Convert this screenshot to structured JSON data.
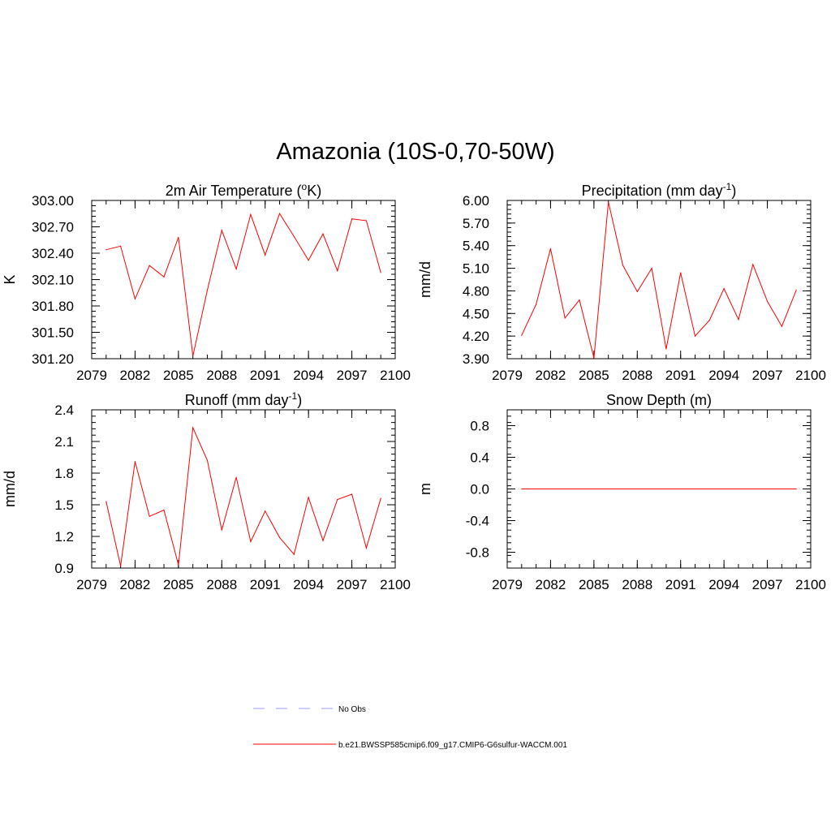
{
  "page": {
    "title": "Amazonia (10S-0,70-50W)"
  },
  "legend": {
    "entries": [
      {
        "label": "No Obs",
        "color": "#9999ff",
        "style": "dashed"
      },
      {
        "label": "b.e21.BWSSP585cmip6.f09_g17.CMIP6-G6sulfur-WACCM.001",
        "color": "#ff0000",
        "style": "solid"
      }
    ]
  },
  "chart_data": [
    {
      "type": "line",
      "title": "2m Air Temperature (",
      "title_sup": "o",
      "title_after": "K)",
      "ylabel": "K",
      "xlim": [
        2079,
        2100
      ],
      "ylim": [
        301.2,
        303.0
      ],
      "xticks": [
        "2079",
        "2082",
        "2085",
        "2088",
        "2091",
        "2094",
        "2097",
        "2100"
      ],
      "yticks": [
        "301.20",
        "301.50",
        "301.80",
        "302.10",
        "302.40",
        "302.70",
        "303.00"
      ],
      "series": [
        {
          "color": "#ff0000",
          "x": [
            2080,
            2081,
            2082,
            2083,
            2084,
            2085,
            2086,
            2087,
            2088,
            2089,
            2090,
            2091,
            2092,
            2093,
            2094,
            2095,
            2096,
            2097,
            2098,
            2099
          ],
          "values": [
            302.44,
            302.48,
            301.88,
            302.26,
            302.13,
            302.58,
            301.23,
            301.98,
            302.66,
            302.22,
            302.84,
            302.38,
            302.85,
            302.59,
            302.32,
            302.62,
            302.2,
            302.79,
            302.77,
            302.18
          ]
        }
      ]
    },
    {
      "type": "line",
      "title": "Precipitation (mm day",
      "title_sup": "-1",
      "title_after": ")",
      "ylabel": "mm/d",
      "xlim": [
        2079,
        2100
      ],
      "ylim": [
        3.9,
        6.0
      ],
      "xticks": [
        "2079",
        "2082",
        "2085",
        "2088",
        "2091",
        "2094",
        "2097",
        "2100"
      ],
      "yticks": [
        "3.90",
        "4.20",
        "4.50",
        "4.80",
        "5.10",
        "5.40",
        "5.70",
        "6.00"
      ],
      "series": [
        {
          "color": "#ff0000",
          "x": [
            2080,
            2081,
            2082,
            2083,
            2084,
            2085,
            2086,
            2087,
            2088,
            2089,
            2090,
            2091,
            2092,
            2093,
            2094,
            2095,
            2096,
            2097,
            2098,
            2099
          ],
          "values": [
            4.21,
            4.62,
            5.36,
            4.44,
            4.68,
            3.91,
            5.98,
            5.14,
            4.79,
            5.1,
            4.03,
            5.04,
            4.2,
            4.41,
            4.83,
            4.42,
            5.15,
            4.66,
            4.33,
            4.81
          ]
        }
      ]
    },
    {
      "type": "line",
      "title": "Runoff (mm day",
      "title_sup": "-1",
      "title_after": ")",
      "ylabel": "mm/d",
      "xlim": [
        2079,
        2100
      ],
      "ylim": [
        0.9,
        2.4
      ],
      "xticks": [
        "2079",
        "2082",
        "2085",
        "2088",
        "2091",
        "2094",
        "2097",
        "2100"
      ],
      "yticks": [
        "0.9",
        "1.2",
        "1.5",
        "1.8",
        "2.1",
        "2.4"
      ],
      "series": [
        {
          "color": "#ff0000",
          "x": [
            2080,
            2081,
            2082,
            2083,
            2084,
            2085,
            2086,
            2087,
            2088,
            2089,
            2090,
            2091,
            2092,
            2093,
            2094,
            2095,
            2096,
            2097,
            2098,
            2099
          ],
          "values": [
            1.53,
            0.92,
            1.91,
            1.39,
            1.45,
            0.93,
            2.23,
            1.92,
            1.26,
            1.76,
            1.15,
            1.44,
            1.19,
            1.03,
            1.57,
            1.16,
            1.55,
            1.6,
            1.09,
            1.56
          ]
        }
      ]
    },
    {
      "type": "line",
      "title": "Snow Depth (m)",
      "title_sup": "",
      "title_after": "",
      "ylabel": "m",
      "xlim": [
        2079,
        2100
      ],
      "ylim": [
        -1.0,
        1.0
      ],
      "xticks": [
        "2079",
        "2082",
        "2085",
        "2088",
        "2091",
        "2094",
        "2097",
        "2100"
      ],
      "yticks": [
        "-0.8",
        "-0.4",
        "0.0",
        "0.4",
        "0.8"
      ],
      "series": [
        {
          "color": "#ff0000",
          "x": [
            2080,
            2099
          ],
          "values": [
            0.0,
            0.0
          ]
        }
      ]
    }
  ]
}
